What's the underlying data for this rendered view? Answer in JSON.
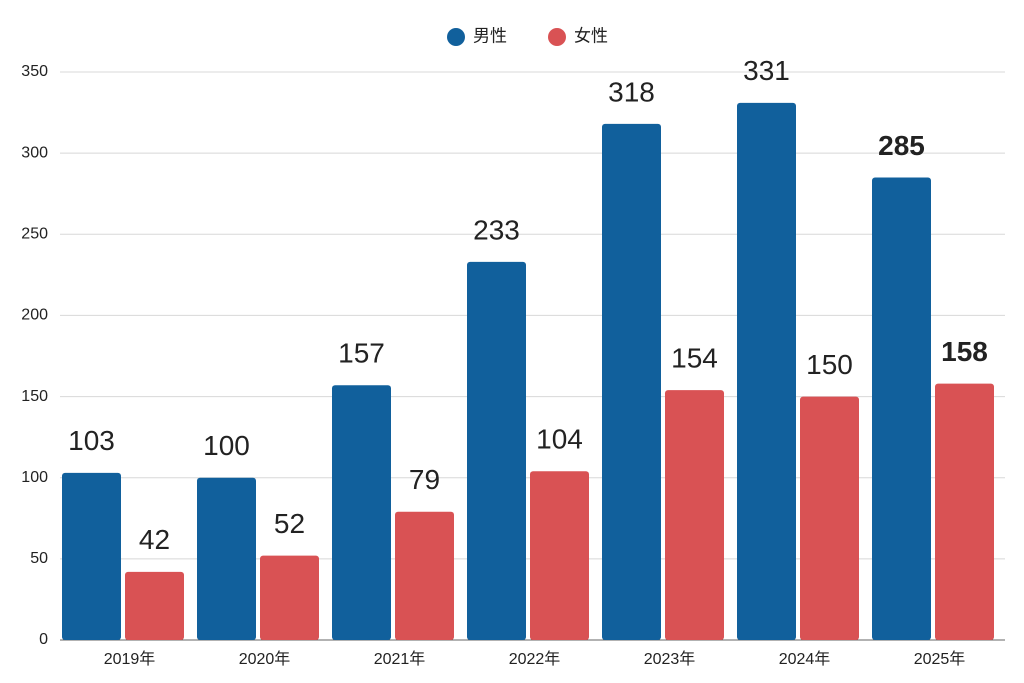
{
  "chart_data": {
    "type": "bar",
    "categories": [
      "2019年",
      "2020年",
      "2021年",
      "2022年",
      "2023年",
      "2024年",
      "2025年"
    ],
    "series": [
      {
        "name": "男性",
        "color": "#11609c",
        "values": [
          103,
          100,
          157,
          233,
          318,
          331,
          285
        ]
      },
      {
        "name": "女性",
        "color": "#d95254",
        "values": [
          42,
          52,
          79,
          104,
          154,
          150,
          158
        ]
      }
    ],
    "ylim": [
      0,
      350
    ],
    "yticks": [
      0,
      50,
      100,
      150,
      200,
      250,
      300,
      350
    ],
    "grid": true,
    "legend": "top"
  }
}
